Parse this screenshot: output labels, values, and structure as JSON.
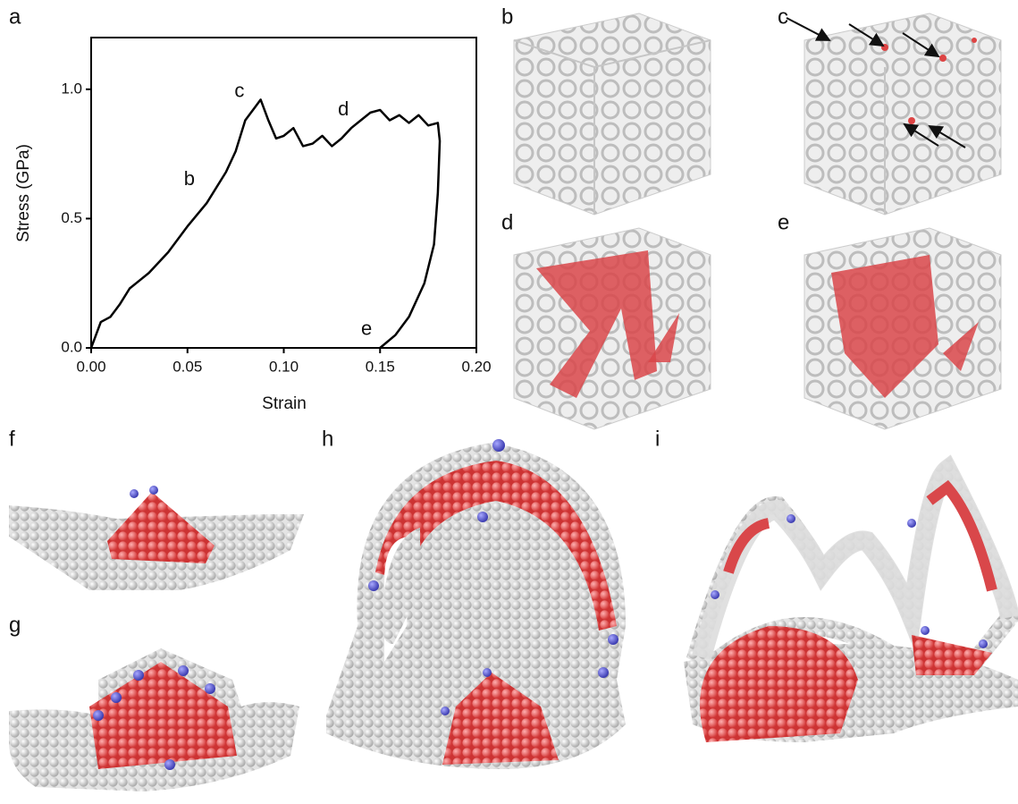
{
  "panels": [
    "a",
    "b",
    "c",
    "d",
    "e",
    "f",
    "g",
    "h",
    "i"
  ],
  "chart_data": {
    "type": "line",
    "x_label": "Strain",
    "y_label": "Stress (GPa)",
    "color": "#000000",
    "x": [
      0,
      0.005,
      0.01,
      0.015,
      0.02,
      0.025,
      0.03,
      0.04,
      0.05,
      0.06,
      0.07,
      0.075,
      0.08,
      0.085,
      0.088,
      0.092,
      0.096,
      0.1,
      0.105,
      0.11,
      0.115,
      0.12,
      0.125,
      0.13,
      0.135,
      0.14,
      0.145,
      0.15,
      0.155,
      0.16,
      0.165,
      0.17,
      0.175,
      0.18,
      0.181,
      0.18,
      0.178,
      0.173,
      0.165,
      0.158,
      0.15
    ],
    "values": [
      0,
      0.1,
      0.12,
      0.17,
      0.23,
      0.26,
      0.29,
      0.37,
      0.47,
      0.56,
      0.68,
      0.76,
      0.88,
      0.93,
      0.96,
      0.88,
      0.81,
      0.82,
      0.85,
      0.78,
      0.79,
      0.82,
      0.78,
      0.81,
      0.85,
      0.88,
      0.91,
      0.92,
      0.88,
      0.9,
      0.87,
      0.9,
      0.86,
      0.87,
      0.8,
      0.6,
      0.4,
      0.25,
      0.12,
      0.05,
      0
    ],
    "xlim": [
      0,
      0.2
    ],
    "ylim": [
      0,
      1.2
    ],
    "xticks": [
      {
        "value": 0,
        "label": "0.00"
      },
      {
        "value": 0.05,
        "label": "0.05"
      },
      {
        "value": 0.1,
        "label": "0.10"
      },
      {
        "value": 0.15,
        "label": "0.15"
      },
      {
        "value": 0.2,
        "label": "0.20"
      }
    ],
    "yticks": [
      {
        "value": 0,
        "label": "0.0"
      },
      {
        "value": 0.5,
        "label": "0.5"
      },
      {
        "value": 1,
        "label": "1.0"
      }
    ],
    "annotations": [
      {
        "text": "b",
        "x": 0.051,
        "y": 0.65
      },
      {
        "text": "c",
        "x": 0.077,
        "y": 0.99
      },
      {
        "text": "d",
        "x": 0.131,
        "y": 0.92
      },
      {
        "text": "e",
        "x": 0.143,
        "y": 0.07
      }
    ]
  }
}
